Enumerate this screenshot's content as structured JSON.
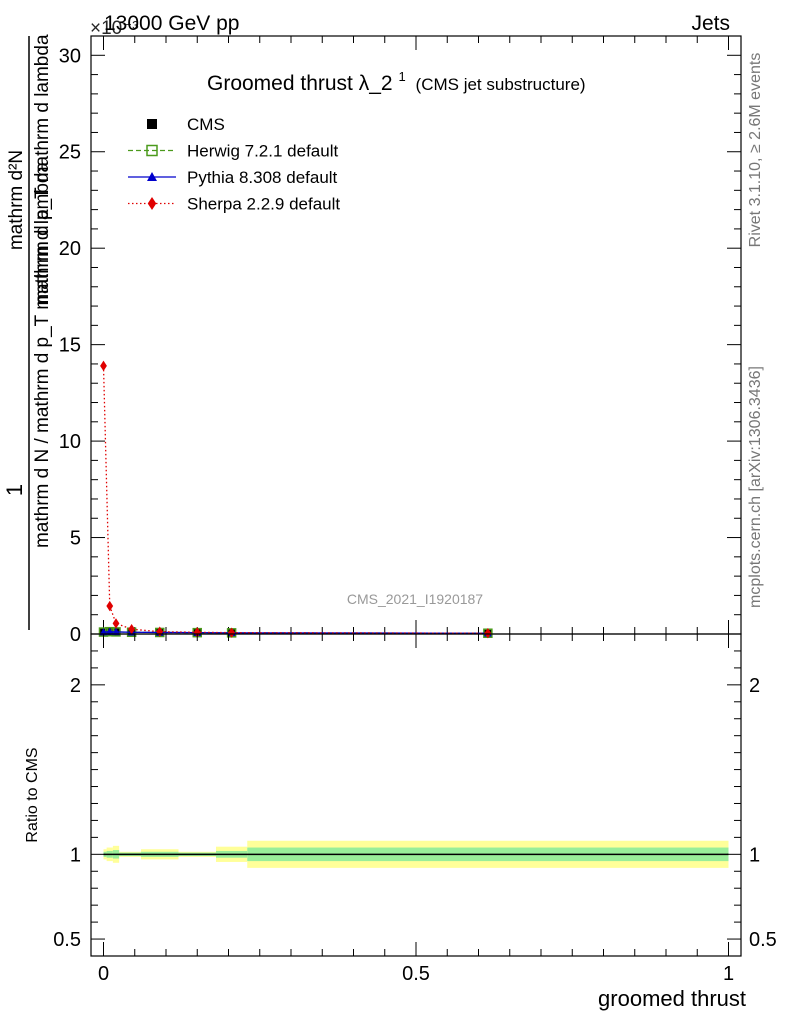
{
  "header": {
    "energy_label": "13000 GeV pp",
    "exponent_label": "×10⁻³",
    "category_label": "Jets"
  },
  "side_labels": {
    "rivet": "Rivet 3.1.10, ≥ 2.6M events",
    "mcplots": "mcplots.cern.ch [arXiv:1306.3436]"
  },
  "chart_data": [
    {
      "type": "line",
      "title": "Groomed thrust",
      "title_symbol": "λ_2",
      "title_superscript": "1",
      "subtitle": "(CMS jet substructure)",
      "analysis_id": "CMS_2021_I1920187",
      "ylabel_numerator": "1",
      "ylabel_denominator": "mathrm d N / mathrm d p_T mathrm d lambda",
      "ylabel_numerator_right": "mathrm d²N",
      "ylabel_denominator_right": "mathrm d p_T mathrm d lambda",
      "y_multiplier": "×10⁻³",
      "ylim": [
        0,
        31
      ],
      "y_ticks": [
        0,
        5,
        10,
        15,
        20,
        25,
        30
      ],
      "y_tick_labels": [
        "0",
        "5",
        "10",
        "15",
        "20",
        "25",
        "30"
      ],
      "xlim": [
        -0.02,
        1.02
      ],
      "legend_position": "top-left",
      "series": [
        {
          "name": "CMS",
          "color": "#000000",
          "marker": "square-filled",
          "line": "none",
          "x": [
            0.0,
            0.01,
            0.02,
            0.045,
            0.09,
            0.15,
            0.205,
            0.615
          ],
          "y": [
            0.1,
            0.12,
            0.11,
            0.09,
            0.08,
            0.07,
            0.06,
            0.04
          ]
        },
        {
          "name": "Herwig 7.2.1 default",
          "color": "#4b9a1c",
          "marker": "square-open",
          "line": "dashed",
          "x": [
            0.0,
            0.01,
            0.02,
            0.045,
            0.09,
            0.15,
            0.205,
            0.615
          ],
          "y": [
            0.1,
            0.12,
            0.11,
            0.09,
            0.08,
            0.07,
            0.06,
            0.04
          ]
        },
        {
          "name": "Pythia 8.308 default",
          "color": "#0000cc",
          "marker": "triangle-filled",
          "line": "solid",
          "x": [
            0.0,
            0.01,
            0.02,
            0.045,
            0.09,
            0.15,
            0.205,
            0.615
          ],
          "y": [
            0.1,
            0.12,
            0.11,
            0.09,
            0.08,
            0.07,
            0.06,
            0.04
          ]
        },
        {
          "name": "Sherpa 2.2.9 default",
          "color": "#e00000",
          "marker": "diamond-filled",
          "line": "dotted",
          "x": [
            0.0,
            0.01,
            0.02,
            0.045,
            0.09,
            0.15,
            0.205,
            0.615
          ],
          "y": [
            13.9,
            1.45,
            0.55,
            0.25,
            0.12,
            0.09,
            0.07,
            0.04
          ]
        }
      ],
      "x_ticks": [
        0,
        0.5,
        1
      ],
      "x_tick_labels": [
        "0",
        "0.5",
        "1"
      ]
    },
    {
      "type": "area",
      "ylabel": "Ratio to CMS",
      "xlabel": "groomed thrust",
      "ylim": [
        0.4,
        2.3
      ],
      "y_ticks": [
        0.5,
        1,
        2
      ],
      "y_tick_labels": [
        "0.5",
        "1",
        "2"
      ],
      "x_ticks": [
        0,
        0.5,
        1
      ],
      "x_tick_labels": [
        "0",
        "0.5",
        "1"
      ],
      "xlim": [
        -0.02,
        1.02
      ],
      "reference_line": 1,
      "uncertainty_bins": [
        {
          "x0": 0.0,
          "x1": 0.005,
          "inner": [
            0.985,
            1.015
          ],
          "outer": [
            0.97,
            1.03
          ]
        },
        {
          "x0": 0.005,
          "x1": 0.015,
          "inner": [
            0.98,
            1.02
          ],
          "outer": [
            0.96,
            1.04
          ]
        },
        {
          "x0": 0.015,
          "x1": 0.025,
          "inner": [
            0.975,
            1.025
          ],
          "outer": [
            0.95,
            1.05
          ]
        },
        {
          "x0": 0.025,
          "x1": 0.06,
          "inner": [
            0.99,
            1.01
          ],
          "outer": [
            0.985,
            1.015
          ]
        },
        {
          "x0": 0.06,
          "x1": 0.12,
          "inner": [
            0.985,
            1.015
          ],
          "outer": [
            0.97,
            1.03
          ]
        },
        {
          "x0": 0.12,
          "x1": 0.18,
          "inner": [
            0.99,
            1.01
          ],
          "outer": [
            0.985,
            1.015
          ]
        },
        {
          "x0": 0.18,
          "x1": 0.23,
          "inner": [
            0.98,
            1.02
          ],
          "outer": [
            0.955,
            1.045
          ]
        },
        {
          "x0": 0.23,
          "x1": 1.0,
          "inner": [
            0.96,
            1.04
          ],
          "outer": [
            0.92,
            1.08
          ]
        }
      ]
    }
  ]
}
